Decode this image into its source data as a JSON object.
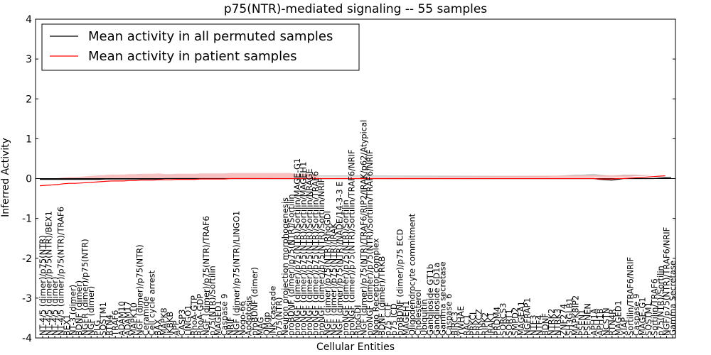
{
  "chart_data": {
    "type": "line",
    "title": "p75(NTR)-mediated signaling -- 55 samples",
    "xlabel": "Cellular Entities",
    "ylabel": "Inferred Activity",
    "ylim": [
      -4,
      4
    ],
    "yticks": [
      -4,
      -3,
      -2,
      -1,
      0,
      1,
      2,
      3,
      4
    ],
    "grid": false,
    "legend_position": "top-left",
    "series": [
      {
        "name": "Mean activity in all permuted samples",
        "color": "#000000",
        "band_color": "#bbbbbb",
        "values": [
          -0.02,
          -0.02,
          -0.02,
          -0.02,
          -0.02,
          -0.02,
          -0.02,
          -0.02,
          -0.02,
          -0.02,
          -0.02,
          -0.01,
          -0.01,
          -0.01,
          -0.01,
          -0.01,
          -0.01,
          -0.01,
          -0.01,
          -0.01,
          -0.01,
          0,
          0,
          0,
          0,
          0,
          0,
          0,
          0,
          0,
          0,
          0,
          0,
          0,
          0,
          0,
          0,
          0,
          0,
          0,
          0,
          0,
          0,
          0,
          0,
          0,
          0,
          0,
          0,
          0,
          0,
          0,
          0,
          0,
          0,
          0,
          0,
          0,
          0,
          0,
          0,
          0,
          0,
          0,
          0,
          0,
          0,
          0,
          0,
          0,
          0,
          0,
          0,
          0,
          0,
          0,
          0,
          0,
          0,
          0,
          0,
          0,
          0,
          0,
          0,
          0,
          0,
          0,
          0,
          0,
          0,
          0,
          0,
          0,
          -0.02,
          -0.03,
          -0.04,
          -0.02,
          0,
          0,
          0,
          0,
          0,
          0,
          0.01,
          0.02,
          0.03
        ],
        "band": [
          0.12,
          0.12,
          0.12,
          0.12,
          0.12,
          0.12,
          0.12,
          0.12,
          0.12,
          0.12,
          0.12,
          0.1,
          0.1,
          0.1,
          0.1,
          0.1,
          0.1,
          0.1,
          0.1,
          0.1,
          0.1,
          0.08,
          0.08,
          0.08,
          0.08,
          0.08,
          0.08,
          0.08,
          0.08,
          0.08,
          0.08,
          0.08,
          0.08,
          0.08,
          0.08,
          0.08,
          0.08,
          0.08,
          0.08,
          0.08,
          0.08,
          0.08,
          0.08,
          0.08,
          0.08,
          0.08,
          0.06,
          0.05,
          0.05,
          0.05,
          0.05,
          0.05,
          0.05,
          0.05,
          0.05,
          0.05,
          0.05,
          0.05,
          0.05,
          0.05,
          0.05,
          0.05,
          0.05,
          0.05,
          0.05,
          0.05,
          0.05,
          0.05,
          0.05,
          0.05,
          0.05,
          0.05,
          0.05,
          0.05,
          0.05,
          0.05,
          0.05,
          0.05,
          0.05,
          0.05,
          0.05,
          0.05,
          0.05,
          0.05,
          0.05,
          0.05,
          0.06,
          0.07,
          0.08,
          0.09,
          0.1,
          0.1,
          0.11,
          0.12,
          0.12,
          0.11,
          0.1,
          0.1,
          0.1,
          0.1,
          0.1,
          0.08,
          0.07,
          0.06
        ]
      },
      {
        "name": "Mean activity in patient samples",
        "color": "#ff0000",
        "band_color": "#f5a8a8",
        "values": [
          -0.18,
          -0.17,
          -0.16,
          -0.15,
          -0.13,
          -0.12,
          -0.12,
          -0.11,
          -0.1,
          -0.09,
          -0.08,
          -0.07,
          -0.06,
          -0.06,
          -0.06,
          -0.05,
          -0.05,
          -0.04,
          -0.04,
          -0.04,
          -0.03,
          -0.03,
          -0.03,
          -0.02,
          -0.02,
          -0.02,
          -0.02,
          -0.01,
          -0.01,
          -0.01,
          -0.01,
          -0.01,
          0,
          0,
          0,
          0,
          0,
          0,
          0,
          0,
          0,
          0,
          0,
          0,
          0,
          0,
          0,
          0,
          0,
          0,
          0,
          0,
          0,
          0,
          0,
          0,
          0,
          0,
          0,
          0,
          0,
          0,
          0,
          0,
          0,
          0,
          0,
          0,
          0,
          0,
          0,
          0,
          0,
          0,
          0,
          0,
          0,
          0,
          0,
          0,
          0,
          0,
          0,
          0,
          0,
          0,
          0,
          0,
          0,
          0,
          0,
          0,
          0,
          0,
          -0.01,
          -0.01,
          -0.01,
          0,
          0,
          0.01,
          0.02,
          0.03,
          0.04,
          0.05,
          0.06,
          0.07
        ],
        "band": [
          0.16,
          0.16,
          0.16,
          0.16,
          0.16,
          0.16,
          0.16,
          0.16,
          0.16,
          0.16,
          0.16,
          0.16,
          0.16,
          0.16,
          0.16,
          0.16,
          0.16,
          0.16,
          0.16,
          0.16,
          0.16,
          0.14,
          0.14,
          0.14,
          0.14,
          0.14,
          0.14,
          0.14,
          0.14,
          0.14,
          0.14,
          0.14,
          0.14,
          0.14,
          0.14,
          0.14,
          0.14,
          0.14,
          0.14,
          0.14,
          0.14,
          0.14,
          0.14,
          0.12,
          0.12,
          0.12,
          0.09,
          0.03,
          0.03,
          0.03,
          0.03,
          0.03,
          0.03,
          0.03,
          0.03,
          0.03,
          0.03,
          0.03,
          0.03,
          0.03,
          0.03,
          0.03,
          0.03,
          0.03,
          0.03,
          0.03,
          0.03,
          0.03,
          0.03,
          0.03,
          0.03,
          0.03,
          0.03,
          0.03,
          0.03,
          0.03,
          0.03,
          0.03,
          0.03,
          0.03,
          0.03,
          0.03,
          0.03,
          0.03,
          0.03,
          0.03,
          0.03,
          0.03,
          0.03,
          0.03,
          0.03,
          0.03,
          0.03,
          0.03,
          0.03,
          0.03,
          0.03,
          0.03,
          0.03,
          0.03,
          0.04,
          0.04,
          0.04,
          0.04
        ]
      }
    ],
    "entity_labels": [
      "NT-4/5 (dimer)/p75(NTR)",
      "NT-4/5 (dimer)/p75(NTR)/BEX1",
      "NT-4/5 (dimer)",
      "NT-4/5 (dimer)/p75(NTR)/TRAF6",
      "BEX1",
      "NT-3 (dimer)",
      "BDNF (dimer)",
      "NGFR (dimer)/p75(NTR)",
      "NGF (dimer)",
      "PLG",
      "SQSTM1",
      "RTN4",
      "TRAF6",
      "ADAM10",
      "ADAM17",
      "MAPK10",
      "NGF (dimer)/p75(NTR)",
      "Ceramide",
      "Cell cycle arrest",
      "BAX",
      "MAPK8",
      "IKBKB",
      "APP",
      "CASP3",
      "LINGO1",
      "RhoA-GTP",
      "RhoA-GDP",
      "NGF (dimer)/p75(NTR)/TRAF6",
      "p75(NTR)/Sortilin",
      "MAGED1",
      "Caspase 9",
      "NRIF",
      "NGF (dimer)/p75(NTR)/LINGO1",
      "Nogo-66",
      "Apoptosis",
      "proBDNF (dimer)",
      "MAG",
      "OMgp",
      "JNK cascade",
      "p75(NTR)",
      "Neuron projection morphogenesis",
      "proBDNF (dimer)/p75(NTR)/Sortilin",
      "proNGF (dimer)/p75(NTR)/Sortilin/MAGE-G1",
      "proNGF (dimer)/p75(NTR)/Sortilin/MAGEH1",
      "proNGF (dimer)/p75(NTR)/Sortilin/NRAGE",
      "proNGF (dimer)/p75(NTR)/Sortilin/TRAF6",
      "proNGF (dimer)/p75(NTR)/Sortilin/NRIF",
      "NGF (dimer)/p75(NTR)/RhoGDI",
      "NGF (dimer)/p75(NTR)/IRAK",
      "NGF (dimer)/p75(NTR)/NADE/14-3-3 E",
      "proNGF (dimer)/p75(NTR)/Sortilin",
      "proNGF (dimer)/p75(NTR)/Sortilin/TRAF6/NRIF",
      "RhoGDI",
      "NGF (dimer)/p75(NTR)/TRAF6/RIP2/IRAK/p62/Atypical",
      "proNGF (dimer)/p75(NTR)/Sortilin/TRAF6/NRIF",
      "Nogo Receptor complex",
      "BDNF (dimer)/TRKB",
      "p75 CTF",
      "p75 ICD",
      "proBDNF (dimer)/p75 ECD",
      "MAGEH1",
      "Oligodendrocyte commitment",
      "Cholesterol",
      "Ubiquitin",
      "Ganglioside GT1b",
      "Ganglioside GD1a",
      "Gamma secretase",
      "Caspase 6",
      "BIRC3",
      "YWHAE",
      "RAC1",
      "PRKCI",
      "PRKCZ",
      "RIPK2",
      "IRAK1",
      "PRDM4",
      "SORCS3",
      "SORT1",
      "SMPD2",
      "MAGEA1",
      "NGFRAP1",
      "NTF3",
      "NTF4",
      "BDNF",
      "NTRK2",
      "NTRK3",
      "ZNF274",
      "SH3GLB1",
      "MAPK8IP2",
      "PSEN1",
      "PSENEN",
      "APH1A",
      "APH1B",
      "NCSTN",
      "RTN4R",
      "MAGED1",
      "XIAP",
      "Sortilin/TRAF6/NRIF",
      "Caspase 9",
      "MAGE-G1",
      "SQSTM1",
      "Sortilin/TRAF6",
      "p75(NTR)/Sortilin",
      "NGF/p75(NTR)/TRAF6/NRIF",
      "Gamma Secretase"
    ]
  },
  "legend": {
    "permuted_label": "Mean activity in all permuted samples",
    "patient_label": "Mean activity in patient samples"
  }
}
